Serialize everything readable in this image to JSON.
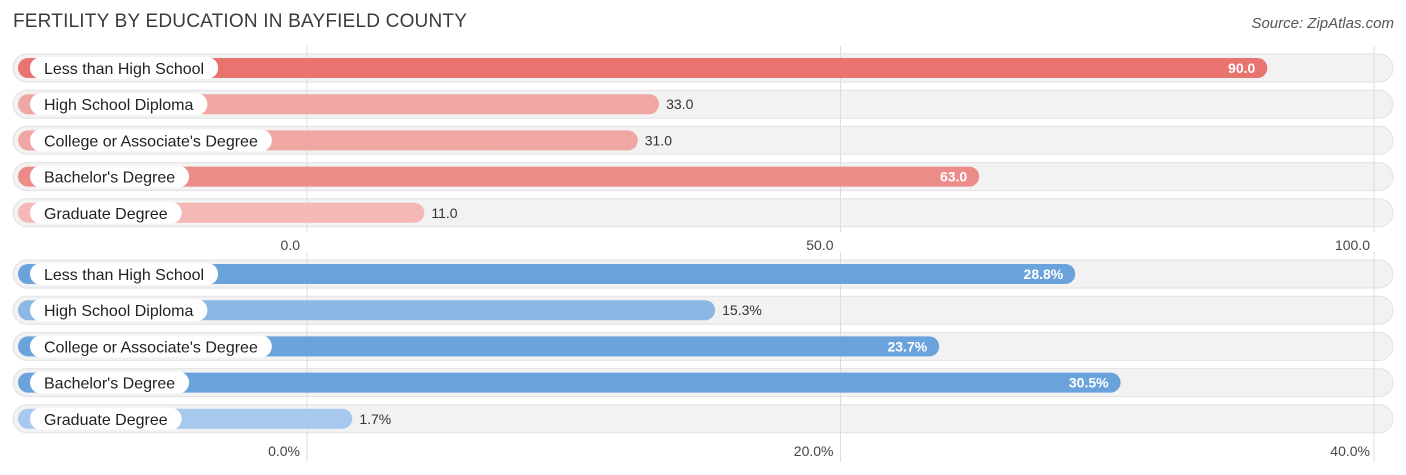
{
  "header": {
    "title": "FERTILITY BY EDUCATION IN BAYFIELD COUNTY",
    "source": "Source: ZipAtlas.com"
  },
  "chart_data": [
    {
      "type": "bar",
      "orientation": "horizontal",
      "categories": [
        "Less than High School",
        "High School Diploma",
        "College or Associate's Degree",
        "Bachelor's Degree",
        "Graduate Degree"
      ],
      "values": [
        90.0,
        33.0,
        31.0,
        63.0,
        11.0
      ],
      "value_labels": [
        "90.0",
        "33.0",
        "31.0",
        "63.0",
        "11.0"
      ],
      "xlim": [
        0,
        100
      ],
      "ticks": [
        0,
        50,
        100
      ],
      "tick_labels": [
        "0.0",
        "50.0",
        "100.0"
      ],
      "colors": [
        "#e8736f",
        "#f0a7a4",
        "#f0a7a4",
        "#ec8c89",
        "#f4b8b6"
      ],
      "grid": true
    },
    {
      "type": "bar",
      "orientation": "horizontal",
      "categories": [
        "Less than High School",
        "High School Diploma",
        "College or Associate's Degree",
        "Bachelor's Degree",
        "Graduate Degree"
      ],
      "values": [
        28.8,
        15.3,
        23.7,
        30.5,
        1.7
      ],
      "value_labels": [
        "28.8%",
        "15.3%",
        "23.7%",
        "30.5%",
        "1.7%"
      ],
      "xlim": [
        0,
        40
      ],
      "ticks": [
        0,
        20,
        40
      ],
      "tick_labels": [
        "0.0%",
        "20.0%",
        "40.0%"
      ],
      "colors": [
        "#6aa2dc",
        "#8bb7e4",
        "#6aa2dc",
        "#6aa2dc",
        "#a8c9ee"
      ],
      "grid": true
    }
  ]
}
